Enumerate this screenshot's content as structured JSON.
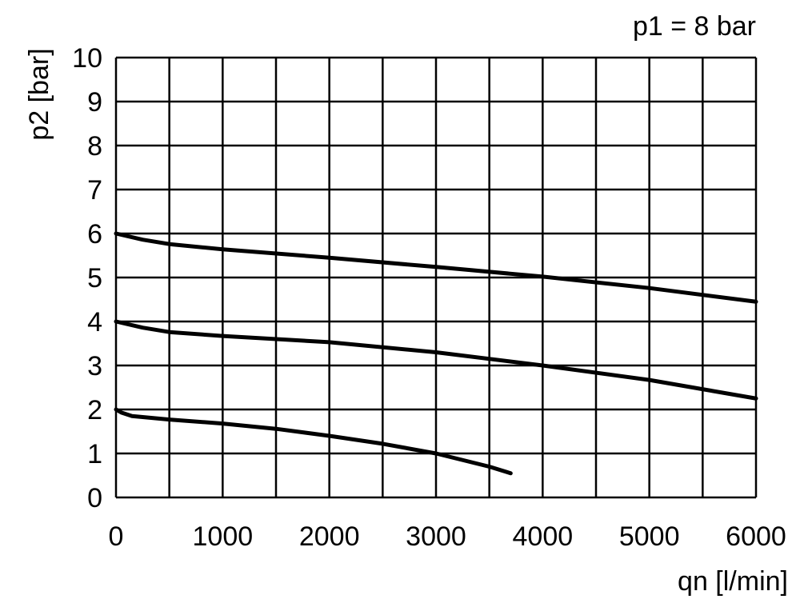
{
  "chart_data": {
    "type": "line",
    "title": "",
    "annotation": "p1 = 8 bar",
    "xlabel": "qn [l/min]",
    "ylabel": "p2 [bar]",
    "xlim": [
      0,
      6000
    ],
    "ylim": [
      0,
      10
    ],
    "grid": true,
    "x_grid_step": 500,
    "y_grid_step": 1,
    "x_ticks": [
      "0",
      "1000",
      "2000",
      "3000",
      "4000",
      "5000",
      "6000"
    ],
    "y_ticks": [
      "0",
      "1",
      "2",
      "3",
      "4",
      "5",
      "6",
      "7",
      "8",
      "9",
      "10"
    ],
    "line_color": "#000000",
    "series": [
      {
        "x": [
          0,
          250,
          500,
          1000,
          2000,
          3000,
          4000,
          5000,
          6000
        ],
        "y": [
          6.0,
          5.86,
          5.76,
          5.64,
          5.45,
          5.24,
          5.02,
          4.76,
          4.45
        ]
      },
      {
        "x": [
          0,
          250,
          500,
          1000,
          2000,
          3000,
          4000,
          5000,
          6000
        ],
        "y": [
          4.0,
          3.86,
          3.76,
          3.67,
          3.53,
          3.3,
          3.0,
          2.67,
          2.25
        ]
      },
      {
        "x": [
          0,
          50,
          150,
          500,
          1000,
          1500,
          2000,
          2500,
          3000,
          3500,
          3700
        ],
        "y": [
          2.0,
          1.93,
          1.85,
          1.77,
          1.68,
          1.56,
          1.4,
          1.22,
          1.0,
          0.7,
          0.55
        ]
      }
    ]
  }
}
